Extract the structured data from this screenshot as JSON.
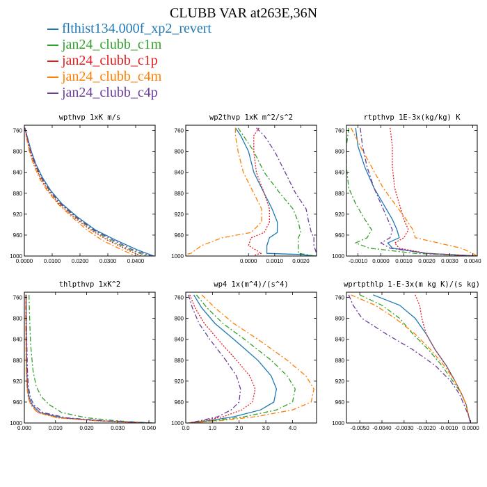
{
  "title": "CLUBB VAR at263E,36N",
  "legend": [
    {
      "label": "flthist134.000f_xp2_revert",
      "color": "#1f78b4",
      "dash": "solid"
    },
    {
      "label": "jan24_clubb_c1m",
      "color": "#33a02c",
      "dash": "dashdot"
    },
    {
      "label": "jan24_clubb_c1p",
      "color": "#e31a1c",
      "dash": "dot"
    },
    {
      "label": "jan24_clubb_c4m",
      "color": "#ff7f00",
      "dash": "dashdot"
    },
    {
      "label": "jan24_clubb_c4p",
      "color": "#6a3d9a",
      "dash": "dashdot"
    }
  ],
  "chart_data": [
    {
      "type": "line",
      "title": "wpthvp  1xK m/s",
      "xlim": [
        0,
        0.047
      ],
      "ylim": [
        750,
        1000
      ],
      "y_reversed": true,
      "xticks": [
        0,
        0.01,
        0.02,
        0.03,
        0.04
      ],
      "xtick_labels": [
        "0.0000",
        "0.0100",
        "0.0200",
        "0.0300",
        "0.0400"
      ],
      "yticks": [
        760,
        800,
        840,
        880,
        920,
        960,
        1000
      ],
      "series": [
        {
          "x": [
            0.0002,
            0.0012,
            0.0025,
            0.0042,
            0.0065,
            0.0095,
            0.0135,
            0.019,
            0.0255,
            0.033,
            0.0405,
            0.0465
          ],
          "y": [
            755,
            775,
            800,
            825,
            850,
            875,
            900,
            925,
            950,
            970,
            988,
            1000
          ]
        },
        {
          "x": [
            0.0002,
            0.001,
            0.0022,
            0.0038,
            0.006,
            0.009,
            0.0128,
            0.0182,
            0.0245,
            0.031,
            0.038,
            0.044
          ],
          "y": [
            755,
            775,
            800,
            825,
            850,
            875,
            900,
            925,
            950,
            970,
            988,
            1000
          ]
        },
        {
          "x": [
            0.0002,
            0.0009,
            0.002,
            0.0036,
            0.0057,
            0.0086,
            0.0124,
            0.0176,
            0.0238,
            0.03,
            0.037,
            0.042
          ],
          "y": [
            755,
            775,
            800,
            825,
            850,
            875,
            900,
            925,
            950,
            970,
            988,
            1000
          ]
        },
        {
          "x": [
            0.0002,
            0.0008,
            0.0018,
            0.0033,
            0.0053,
            0.0082,
            0.012,
            0.017,
            0.0225,
            0.028,
            0.035,
            0.04
          ],
          "y": [
            755,
            775,
            800,
            825,
            850,
            875,
            900,
            925,
            950,
            970,
            988,
            1000
          ]
        },
        {
          "x": [
            0.0002,
            0.0011,
            0.0024,
            0.004,
            0.0062,
            0.0092,
            0.0131,
            0.0185,
            0.025,
            0.032,
            0.039,
            0.0455
          ],
          "y": [
            755,
            775,
            800,
            825,
            850,
            875,
            900,
            925,
            950,
            970,
            988,
            1000
          ]
        }
      ]
    },
    {
      "type": "line",
      "title": "wp2thvp  1xK m^2/s^2",
      "xlim": [
        -0.0024,
        0.0026
      ],
      "ylim": [
        750,
        1000
      ],
      "y_reversed": true,
      "xticks": [
        0.0,
        0.001,
        0.002
      ],
      "xtick_labels": [
        "0.0000",
        "0.0010",
        "0.0020"
      ],
      "yticks": [
        760,
        800,
        840,
        880,
        920,
        960,
        1000
      ],
      "series": [
        {
          "x": [
            -0.0005,
            -0.0003,
            0.0,
            0.0002,
            0.0006,
            0.0009,
            0.0011,
            0.0011,
            0.0008,
            0.0007,
            0.0007,
            0.0019,
            0.0026
          ],
          "y": [
            755,
            770,
            800,
            840,
            880,
            910,
            935,
            955,
            965,
            980,
            995,
            997,
            1000
          ]
        },
        {
          "x": [
            -0.0004,
            -0.0002,
            0.0002,
            0.0006,
            0.0012,
            0.0017,
            0.0019,
            0.002,
            0.0019,
            0.0019,
            0.0019,
            0.0022,
            0.0025
          ],
          "y": [
            755,
            770,
            800,
            840,
            880,
            910,
            935,
            955,
            965,
            980,
            995,
            997,
            1000
          ]
        },
        {
          "x": [
            0.0004,
            0.0002,
            0.0002,
            0.0003,
            0.0006,
            0.0008,
            0.0008,
            0.0006,
            0.0001,
            0.0,
            0.0005,
            0.0003,
            0.0002
          ],
          "y": [
            755,
            770,
            800,
            840,
            880,
            910,
            935,
            955,
            965,
            980,
            995,
            997,
            1000
          ]
        },
        {
          "x": [
            -0.0005,
            -0.0005,
            -0.0004,
            -0.0002,
            0.0002,
            0.0005,
            0.0005,
            0.0001,
            -0.001,
            -0.0018,
            -0.0022,
            -0.0024,
            -0.0024
          ],
          "y": [
            755,
            770,
            800,
            840,
            880,
            910,
            935,
            955,
            965,
            980,
            995,
            997,
            1000
          ]
        },
        {
          "x": [
            0.0003,
            0.0006,
            0.001,
            0.0014,
            0.0018,
            0.0022,
            0.0023,
            0.0024,
            0.0025,
            0.0025,
            0.0026,
            0.0026,
            0.0026
          ],
          "y": [
            755,
            770,
            800,
            840,
            880,
            910,
            935,
            955,
            965,
            980,
            995,
            997,
            1000
          ]
        }
      ]
    },
    {
      "type": "line",
      "title": "rtpthvp  1E-3x(kg/kg) K",
      "xlim": [
        -0.0015,
        0.0042
      ],
      "ylim": [
        750,
        1000
      ],
      "y_reversed": true,
      "xticks": [
        -0.001,
        0.0,
        0.001,
        0.002,
        0.003,
        0.004
      ],
      "xtick_labels": [
        "-0.0010",
        "0.0000",
        "0.0010",
        "0.0020",
        "0.0030",
        "0.0040"
      ],
      "yticks": [
        760,
        800,
        840,
        880,
        920,
        960,
        1000
      ],
      "series": [
        {
          "x": [
            -0.0011,
            -0.001,
            -0.0007,
            -0.0003,
            0.0001,
            0.0005,
            0.0007,
            0.0008,
            0.0003,
            0.0005,
            0.002,
            0.0042
          ],
          "y": [
            755,
            790,
            830,
            870,
            900,
            930,
            950,
            965,
            975,
            985,
            995,
            1000
          ]
        },
        {
          "x": [
            -0.0014,
            -0.0015,
            -0.0015,
            -0.0014,
            -0.0011,
            -0.0007,
            -0.0004,
            -0.0006,
            -0.0011,
            -0.0005,
            0.0015,
            0.0041
          ],
          "y": [
            755,
            790,
            830,
            870,
            900,
            930,
            950,
            965,
            975,
            985,
            995,
            1000
          ]
        },
        {
          "x": [
            0.0004,
            0.0005,
            0.0005,
            0.0006,
            0.0008,
            0.001,
            0.0012,
            0.001,
            0.0006,
            0.0008,
            0.002,
            0.0042
          ],
          "y": [
            755,
            790,
            830,
            870,
            900,
            930,
            950,
            965,
            975,
            985,
            995,
            1000
          ]
        },
        {
          "x": [
            -0.0013,
            -0.0009,
            -0.0004,
            0.0001,
            0.0006,
            0.0011,
            0.0014,
            0.0015,
            0.0025,
            0.0035,
            0.004,
            0.0042
          ],
          "y": [
            755,
            790,
            830,
            870,
            900,
            930,
            950,
            965,
            975,
            985,
            995,
            1000
          ]
        },
        {
          "x": [
            -0.0009,
            -0.0008,
            -0.0006,
            -0.0003,
            0.0,
            0.0003,
            0.0005,
            0.0004,
            0.0,
            0.0004,
            0.002,
            0.0042
          ],
          "y": [
            755,
            790,
            830,
            870,
            900,
            930,
            950,
            965,
            975,
            985,
            995,
            1000
          ]
        }
      ]
    },
    {
      "type": "line",
      "title": "thlpthvp  1xK^2",
      "xlim": [
        0,
        0.042
      ],
      "ylim": [
        750,
        1000
      ],
      "y_reversed": true,
      "xticks": [
        0,
        0.01,
        0.02,
        0.03,
        0.04
      ],
      "xtick_labels": [
        "0.000",
        "0.010",
        "0.020",
        "0.030",
        "0.040"
      ],
      "yticks": [
        760,
        800,
        840,
        880,
        920,
        960,
        1000
      ],
      "series": [
        {
          "x": [
            0.0006,
            0.0006,
            0.0007,
            0.0008,
            0.001,
            0.0015,
            0.0025,
            0.005,
            0.012,
            0.025,
            0.041
          ],
          "y": [
            755,
            800,
            850,
            900,
            930,
            950,
            965,
            980,
            990,
            996,
            1000
          ]
        },
        {
          "x": [
            0.0015,
            0.0017,
            0.002,
            0.0028,
            0.0038,
            0.0055,
            0.008,
            0.012,
            0.02,
            0.03,
            0.0415
          ],
          "y": [
            755,
            800,
            850,
            900,
            930,
            950,
            965,
            980,
            990,
            996,
            1000
          ]
        },
        {
          "x": [
            0.0005,
            0.0005,
            0.0006,
            0.0007,
            0.0009,
            0.0013,
            0.0022,
            0.0045,
            0.011,
            0.024,
            0.0405
          ],
          "y": [
            755,
            800,
            850,
            900,
            930,
            950,
            965,
            980,
            990,
            996,
            1000
          ]
        },
        {
          "x": [
            0.0004,
            0.0004,
            0.0005,
            0.0006,
            0.0008,
            0.0012,
            0.002,
            0.0042,
            0.0105,
            0.0235,
            0.04
          ],
          "y": [
            755,
            800,
            850,
            900,
            930,
            950,
            965,
            980,
            990,
            996,
            1000
          ]
        },
        {
          "x": [
            0.0006,
            0.0007,
            0.0008,
            0.001,
            0.0013,
            0.0019,
            0.003,
            0.006,
            0.0135,
            0.026,
            0.041
          ],
          "y": [
            755,
            800,
            850,
            900,
            930,
            950,
            965,
            980,
            990,
            996,
            1000
          ]
        }
      ]
    },
    {
      "type": "line",
      "title": "wp4  1x(m^4)/(s^4)",
      "xlim": [
        0,
        4.9
      ],
      "ylim": [
        750,
        1000
      ],
      "y_reversed": true,
      "xticks": [
        0,
        1,
        2,
        3,
        4
      ],
      "xtick_labels": [
        "0.0",
        "1.0",
        "2.0",
        "3.0",
        "4.0"
      ],
      "yticks": [
        760,
        800,
        840,
        880,
        920,
        960,
        1000
      ],
      "series": [
        {
          "x": [
            0.3,
            0.6,
            1.1,
            1.8,
            2.7,
            3.2,
            3.4,
            3.3,
            2.8,
            1.8,
            0.8,
            0.1
          ],
          "y": [
            755,
            780,
            810,
            840,
            880,
            910,
            935,
            960,
            975,
            988,
            996,
            1000
          ]
        },
        {
          "x": [
            0.4,
            0.8,
            1.4,
            2.2,
            3.2,
            3.8,
            4.1,
            4.0,
            3.4,
            2.2,
            1.0,
            0.1
          ],
          "y": [
            755,
            780,
            810,
            840,
            880,
            910,
            935,
            960,
            975,
            988,
            996,
            1000
          ]
        },
        {
          "x": [
            0.15,
            0.35,
            0.7,
            1.2,
            1.9,
            2.4,
            2.6,
            2.5,
            2.1,
            1.4,
            0.6,
            0.1
          ],
          "y": [
            755,
            780,
            810,
            840,
            880,
            910,
            935,
            960,
            975,
            988,
            996,
            1000
          ]
        },
        {
          "x": [
            0.6,
            1.1,
            1.8,
            2.7,
            3.8,
            4.5,
            4.8,
            4.7,
            4.0,
            2.6,
            1.2,
            0.1
          ],
          "y": [
            755,
            780,
            810,
            840,
            880,
            910,
            935,
            960,
            975,
            988,
            996,
            1000
          ]
        },
        {
          "x": [
            0.1,
            0.25,
            0.5,
            0.9,
            1.5,
            1.9,
            2.05,
            2.0,
            1.7,
            1.2,
            0.5,
            0.1
          ],
          "y": [
            755,
            780,
            810,
            840,
            880,
            910,
            935,
            960,
            975,
            988,
            996,
            1000
          ]
        }
      ]
    },
    {
      "type": "line",
      "title": "wprtpthlp  1-E-3x(m kg K)/(s kg)",
      "xlim": [
        -0.0056,
        0.0003
      ],
      "ylim": [
        750,
        1000
      ],
      "y_reversed": true,
      "xticks": [
        -0.005,
        -0.004,
        -0.003,
        -0.002,
        -0.001,
        0.0
      ],
      "xtick_labels": [
        "-0.0050",
        "-0.0040",
        "-0.0030",
        "-0.0020",
        "-0.0010",
        "0.0000"
      ],
      "yticks": [
        760,
        800,
        840,
        880,
        920,
        960,
        1000
      ],
      "series": [
        {
          "x": [
            -0.0044,
            -0.0032,
            -0.0025,
            -0.002,
            -0.0016,
            -0.0011,
            -0.0007,
            -0.0004,
            -0.0002,
            -0.0001,
            0.0
          ],
          "y": [
            755,
            775,
            800,
            830,
            860,
            890,
            920,
            945,
            965,
            985,
            1000
          ]
        },
        {
          "x": [
            -0.005,
            -0.004,
            -0.0032,
            -0.0026,
            -0.0019,
            -0.0013,
            -0.0008,
            -0.0004,
            -0.0002,
            -0.0001,
            0.0
          ],
          "y": [
            755,
            775,
            800,
            830,
            860,
            890,
            920,
            945,
            965,
            985,
            1000
          ]
        },
        {
          "x": [
            -0.0025,
            -0.0023,
            -0.0022,
            -0.002,
            -0.0016,
            -0.0011,
            -0.0007,
            -0.0004,
            -0.0002,
            -0.0001,
            0.0
          ],
          "y": [
            755,
            775,
            800,
            830,
            860,
            890,
            920,
            945,
            965,
            985,
            1000
          ]
        },
        {
          "x": [
            -0.0054,
            -0.0043,
            -0.0034,
            -0.0025,
            -0.0018,
            -0.0012,
            -0.0007,
            -0.0004,
            -0.0002,
            -0.0001,
            0.0
          ],
          "y": [
            755,
            775,
            800,
            830,
            860,
            890,
            920,
            945,
            965,
            985,
            1000
          ]
        },
        {
          "x": [
            -0.0055,
            -0.0053,
            -0.0049,
            -0.0038,
            -0.0026,
            -0.0016,
            -0.0009,
            -0.0005,
            -0.0003,
            -0.0001,
            0.0
          ],
          "y": [
            755,
            775,
            800,
            830,
            860,
            890,
            920,
            945,
            965,
            985,
            1000
          ]
        }
      ]
    }
  ]
}
